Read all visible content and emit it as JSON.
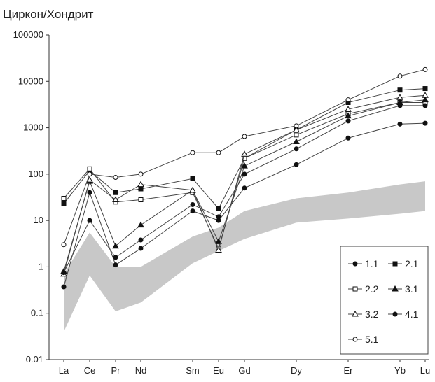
{
  "chart_data": {
    "type": "line",
    "ylabel": "Циркон/Хондрит",
    "xlabel": "",
    "yscale": "log",
    "ylim": [
      0.01,
      100000
    ],
    "yticks": [
      "0.01",
      "0.1",
      "1",
      "10",
      "100",
      "1000",
      "10000",
      "100000"
    ],
    "categories": [
      "La",
      "Ce",
      "Pr",
      "Nd",
      "Sm",
      "Eu",
      "Gd",
      "Dy",
      "Er",
      "Yb",
      "Lu"
    ],
    "grid": false,
    "legend_position": "bottom-right",
    "band": {
      "color": "#c8c8c8",
      "upper": [
        {
          "x": "La",
          "y": 0.7
        },
        {
          "x": "Ce",
          "y": 5.5
        },
        {
          "x": "Pr",
          "y": 1.0
        },
        {
          "x": "Nd",
          "y": 1.0
        },
        {
          "x": "Sm",
          "y": 4.5
        },
        {
          "x": "Eu",
          "y": 7.0
        },
        {
          "x": "Gd",
          "y": 16
        },
        {
          "x": "Dy",
          "y": 30
        },
        {
          "x": "Er",
          "y": 40
        },
        {
          "x": "Yb",
          "y": 60
        },
        {
          "x": "Lu",
          "y": 70
        }
      ],
      "lower": [
        {
          "x": "La",
          "y": 0.04
        },
        {
          "x": "Ce",
          "y": 0.65
        },
        {
          "x": "Pr",
          "y": 0.11
        },
        {
          "x": "Nd",
          "y": 0.17
        },
        {
          "x": "Sm",
          "y": 1.2
        },
        {
          "x": "Eu",
          "y": 2.2
        },
        {
          "x": "Gd",
          "y": 4.0
        },
        {
          "x": "Dy",
          "y": 9
        },
        {
          "x": "Er",
          "y": 11
        },
        {
          "x": "Yb",
          "y": 14
        },
        {
          "x": "Lu",
          "y": 16
        }
      ]
    },
    "series": [
      {
        "name": "1.1",
        "marker": "dot",
        "filled": true,
        "points": [
          {
            "x": "La",
            "y": 0.37
          },
          {
            "x": "Ce",
            "y": 40
          },
          {
            "x": "Pr",
            "y": 1.1
          },
          {
            "x": "Nd",
            "y": 2.5
          },
          {
            "x": "Sm",
            "y": 16
          },
          {
            "x": "Eu",
            "y": 10
          },
          {
            "x": "Gd",
            "y": 50
          },
          {
            "x": "Dy",
            "y": 160
          },
          {
            "x": "Er",
            "y": 600
          },
          {
            "x": "Yb",
            "y": 1200
          },
          {
            "x": "Lu",
            "y": 1250
          }
        ]
      },
      {
        "name": "2.1",
        "marker": "square",
        "filled": true,
        "points": [
          {
            "x": "La",
            "y": 23
          },
          {
            "x": "Ce",
            "y": 120
          },
          {
            "x": "Pr",
            "y": 40
          },
          {
            "x": "Nd",
            "y": 48
          },
          {
            "x": "Sm",
            "y": 80
          },
          {
            "x": "Eu",
            "y": 18
          },
          {
            "x": "Gd",
            "y": 220
          },
          {
            "x": "Dy",
            "y": 900
          },
          {
            "x": "Er",
            "y": 3500
          },
          {
            "x": "Yb",
            "y": 6500
          },
          {
            "x": "Lu",
            "y": 7000
          }
        ]
      },
      {
        "name": "2.2",
        "marker": "square",
        "filled": false,
        "points": [
          {
            "x": "La",
            "y": 30
          },
          {
            "x": "Ce",
            "y": 130
          },
          {
            "x": "Pr",
            "y": 25
          },
          {
            "x": "Nd",
            "y": 28
          },
          {
            "x": "Sm",
            "y": 40
          },
          {
            "x": "Eu",
            "y": 2.5
          },
          {
            "x": "Gd",
            "y": 220
          },
          {
            "x": "Dy",
            "y": 700
          },
          {
            "x": "Er",
            "y": 2000
          },
          {
            "x": "Yb",
            "y": 3500
          },
          {
            "x": "Lu",
            "y": 3500
          }
        ]
      },
      {
        "name": "3.1",
        "marker": "triangle",
        "filled": true,
        "points": [
          {
            "x": "La",
            "y": 0.8
          },
          {
            "x": "Ce",
            "y": 70
          },
          {
            "x": "Pr",
            "y": 2.8
          },
          {
            "x": "Nd",
            "y": 8
          },
          {
            "x": "Sm",
            "y": 45
          },
          {
            "x": "Eu",
            "y": 3.5
          },
          {
            "x": "Gd",
            "y": 150
          },
          {
            "x": "Dy",
            "y": 500
          },
          {
            "x": "Er",
            "y": 1800
          },
          {
            "x": "Yb",
            "y": 3500
          },
          {
            "x": "Lu",
            "y": 4000
          }
        ]
      },
      {
        "name": "3.2",
        "marker": "triangle",
        "filled": false,
        "points": [
          {
            "x": "La",
            "y": 0.7
          },
          {
            "x": "Ce",
            "y": 75
          },
          {
            "x": "Pr",
            "y": 28
          },
          {
            "x": "Nd",
            "y": 60
          },
          {
            "x": "Sm",
            "y": 45
          },
          {
            "x": "Eu",
            "y": 2.3
          },
          {
            "x": "Gd",
            "y": 270
          },
          {
            "x": "Dy",
            "y": 900
          },
          {
            "x": "Er",
            "y": 2500
          },
          {
            "x": "Yb",
            "y": 4500
          },
          {
            "x": "Lu",
            "y": 5000
          }
        ]
      },
      {
        "name": "4.1",
        "marker": "dot",
        "filled": true,
        "points": [
          {
            "x": "La",
            "y": 0.75
          },
          {
            "x": "Ce",
            "y": 10
          },
          {
            "x": "Pr",
            "y": 1.6
          },
          {
            "x": "Nd",
            "y": 3.8
          },
          {
            "x": "Sm",
            "y": 22
          },
          {
            "x": "Eu",
            "y": 12
          },
          {
            "x": "Gd",
            "y": 100
          },
          {
            "x": "Dy",
            "y": 350
          },
          {
            "x": "Er",
            "y": 1400
          },
          {
            "x": "Yb",
            "y": 3000
          },
          {
            "x": "Lu",
            "y": 3000
          }
        ]
      },
      {
        "name": "5.1",
        "marker": "dot",
        "filled": false,
        "points": [
          {
            "x": "La",
            "y": 3
          },
          {
            "x": "Ce",
            "y": 100
          },
          {
            "x": "Pr",
            "y": 85
          },
          {
            "x": "Nd",
            "y": 100
          },
          {
            "x": "Sm",
            "y": 290
          },
          {
            "x": "Eu",
            "y": 290
          },
          {
            "x": "Gd",
            "y": 650
          },
          {
            "x": "Dy",
            "y": 1100
          },
          {
            "x": "Er",
            "y": 4000
          },
          {
            "x": "Yb",
            "y": 13000
          },
          {
            "x": "Lu",
            "y": 18000
          }
        ]
      }
    ]
  }
}
